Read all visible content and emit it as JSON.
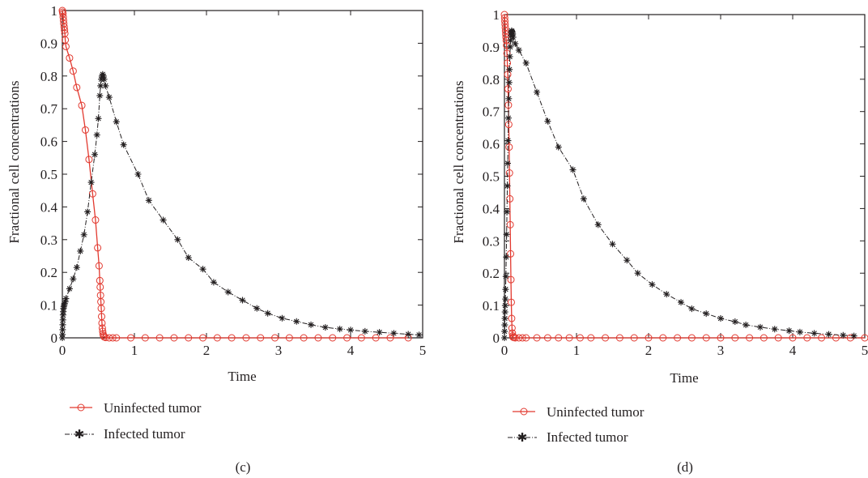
{
  "colors": {
    "uninfected": "#e2392f",
    "infected": "#231f20",
    "axis": "#231f20"
  },
  "chart_data": [
    {
      "type": "line",
      "panel_label": "(c)",
      "xlabel": "Time",
      "ylabel": "Fractional cell concentrations",
      "xlim": [
        0,
        5
      ],
      "ylim": [
        0,
        1
      ],
      "xticks": [
        "0",
        "1",
        "2",
        "3",
        "4",
        "5"
      ],
      "yticks": [
        "0",
        "0.1",
        "0.2",
        "0.3",
        "0.4",
        "0.5",
        "0.6",
        "0.7",
        "0.8",
        "0.9",
        "1"
      ],
      "grid": false,
      "legend": "below",
      "series": [
        {
          "name": "Uninfected tumor",
          "color": "#e2392f",
          "marker": "circle",
          "line": "solid",
          "x": [
            0,
            0.004,
            0.008,
            0.012,
            0.016,
            0.02,
            0.025,
            0.03,
            0.035,
            0.04,
            0.05,
            0.1,
            0.15,
            0.2,
            0.27,
            0.32,
            0.37,
            0.42,
            0.46,
            0.49,
            0.51,
            0.52,
            0.525,
            0.53,
            0.535,
            0.54,
            0.545,
            0.55,
            0.555,
            0.56,
            0.565,
            0.57,
            0.58,
            0.6,
            0.65,
            0.7,
            0.75,
            0.95,
            1.15,
            1.35,
            1.55,
            1.75,
            1.95,
            2.15,
            2.35,
            2.55,
            2.75,
            2.95,
            3.15,
            3.35,
            3.55,
            3.75,
            3.95,
            4.15,
            4.35,
            4.55,
            4.8
          ],
          "y": [
            1.0,
            0.995,
            0.99,
            0.98,
            0.97,
            0.96,
            0.95,
            0.94,
            0.93,
            0.91,
            0.89,
            0.855,
            0.815,
            0.765,
            0.71,
            0.635,
            0.545,
            0.44,
            0.36,
            0.275,
            0.22,
            0.175,
            0.155,
            0.13,
            0.11,
            0.09,
            0.065,
            0.045,
            0.03,
            0.02,
            0.012,
            0.007,
            0.003,
            0.001,
            0,
            0,
            0,
            0,
            0,
            0,
            0,
            0,
            0,
            0,
            0,
            0,
            0,
            0,
            0,
            0,
            0,
            0,
            0,
            0,
            0,
            0,
            0
          ]
        },
        {
          "name": "Infected tumor",
          "color": "#231f20",
          "marker": "star",
          "line": "dashdot",
          "x": [
            0,
            0.002,
            0.004,
            0.006,
            0.008,
            0.01,
            0.013,
            0.016,
            0.02,
            0.025,
            0.03,
            0.04,
            0.05,
            0.1,
            0.15,
            0.2,
            0.25,
            0.3,
            0.35,
            0.4,
            0.45,
            0.48,
            0.5,
            0.52,
            0.53,
            0.54,
            0.55,
            0.56,
            0.57,
            0.58,
            0.6,
            0.65,
            0.75,
            0.85,
            1.05,
            1.2,
            1.4,
            1.6,
            1.75,
            1.95,
            2.1,
            2.3,
            2.5,
            2.7,
            2.85,
            3.05,
            3.25,
            3.45,
            3.65,
            3.85,
            4.0,
            4.2,
            4.4,
            4.6,
            4.8,
            4.95
          ],
          "y": [
            0.0,
            0.01,
            0.025,
            0.04,
            0.055,
            0.07,
            0.08,
            0.09,
            0.095,
            0.1,
            0.105,
            0.11,
            0.12,
            0.15,
            0.18,
            0.215,
            0.265,
            0.315,
            0.385,
            0.475,
            0.56,
            0.62,
            0.67,
            0.74,
            0.77,
            0.79,
            0.8,
            0.805,
            0.8,
            0.79,
            0.77,
            0.735,
            0.66,
            0.59,
            0.5,
            0.42,
            0.36,
            0.3,
            0.245,
            0.21,
            0.17,
            0.14,
            0.115,
            0.09,
            0.075,
            0.06,
            0.05,
            0.04,
            0.032,
            0.027,
            0.024,
            0.02,
            0.017,
            0.014,
            0.011,
            0.009
          ]
        }
      ]
    },
    {
      "type": "line",
      "panel_label": "(d)",
      "xlabel": "Time",
      "ylabel": "Fractional cell concentrations",
      "xlim": [
        0,
        5
      ],
      "ylim": [
        0,
        1
      ],
      "xticks": [
        "0",
        "1",
        "2",
        "3",
        "4",
        "5"
      ],
      "yticks": [
        "0",
        "0.1",
        "0.2",
        "0.3",
        "0.4",
        "0.5",
        "0.6",
        "0.7",
        "0.8",
        "0.9",
        "1"
      ],
      "grid": false,
      "legend": "below",
      "series": [
        {
          "name": "Uninfected tumor",
          "color": "#e2392f",
          "marker": "circle",
          "line": "solid",
          "x": [
            0,
            0.003,
            0.006,
            0.009,
            0.012,
            0.015,
            0.018,
            0.021,
            0.025,
            0.03,
            0.035,
            0.04,
            0.045,
            0.05,
            0.055,
            0.06,
            0.065,
            0.07,
            0.075,
            0.08,
            0.085,
            0.09,
            0.095,
            0.1,
            0.105,
            0.11,
            0.115,
            0.12,
            0.13,
            0.15,
            0.2,
            0.25,
            0.3,
            0.45,
            0.6,
            0.75,
            0.9,
            1.05,
            1.2,
            1.4,
            1.6,
            1.8,
            2.0,
            2.2,
            2.4,
            2.6,
            2.8,
            3.0,
            3.2,
            3.4,
            3.6,
            3.8,
            4.0,
            4.2,
            4.4,
            4.6,
            4.8,
            5.0
          ],
          "y": [
            1.0,
            0.99,
            0.98,
            0.97,
            0.96,
            0.95,
            0.94,
            0.93,
            0.92,
            0.905,
            0.88,
            0.85,
            0.815,
            0.77,
            0.72,
            0.66,
            0.59,
            0.51,
            0.43,
            0.35,
            0.26,
            0.18,
            0.11,
            0.06,
            0.03,
            0.015,
            0.006,
            0.002,
            0.001,
            0,
            0,
            0,
            0,
            0,
            0,
            0,
            0,
            0,
            0,
            0,
            0,
            0,
            0,
            0,
            0,
            0,
            0,
            0,
            0,
            0,
            0,
            0,
            0,
            0,
            0,
            0,
            0,
            0
          ]
        },
        {
          "name": "Infected tumor",
          "color": "#231f20",
          "marker": "star",
          "line": "dashdot",
          "x": [
            0,
            0.002,
            0.004,
            0.006,
            0.008,
            0.01,
            0.013,
            0.016,
            0.02,
            0.025,
            0.03,
            0.035,
            0.04,
            0.045,
            0.05,
            0.055,
            0.06,
            0.065,
            0.07,
            0.075,
            0.08,
            0.085,
            0.09,
            0.095,
            0.1,
            0.105,
            0.11,
            0.115,
            0.12,
            0.15,
            0.2,
            0.3,
            0.45,
            0.6,
            0.75,
            0.95,
            1.1,
            1.3,
            1.5,
            1.7,
            1.85,
            2.05,
            2.25,
            2.45,
            2.6,
            2.8,
            3.0,
            3.2,
            3.35,
            3.55,
            3.75,
            3.95,
            4.1,
            4.3,
            4.5,
            4.7,
            4.85
          ],
          "y": [
            0.0,
            0.02,
            0.04,
            0.06,
            0.08,
            0.1,
            0.12,
            0.15,
            0.19,
            0.25,
            0.32,
            0.39,
            0.47,
            0.54,
            0.61,
            0.68,
            0.74,
            0.79,
            0.83,
            0.87,
            0.9,
            0.92,
            0.935,
            0.945,
            0.95,
            0.948,
            0.945,
            0.94,
            0.93,
            0.91,
            0.89,
            0.85,
            0.76,
            0.67,
            0.59,
            0.52,
            0.43,
            0.35,
            0.29,
            0.24,
            0.2,
            0.165,
            0.135,
            0.11,
            0.09,
            0.075,
            0.06,
            0.05,
            0.04,
            0.033,
            0.027,
            0.022,
            0.018,
            0.014,
            0.011,
            0.008,
            0.006
          ]
        }
      ]
    }
  ]
}
